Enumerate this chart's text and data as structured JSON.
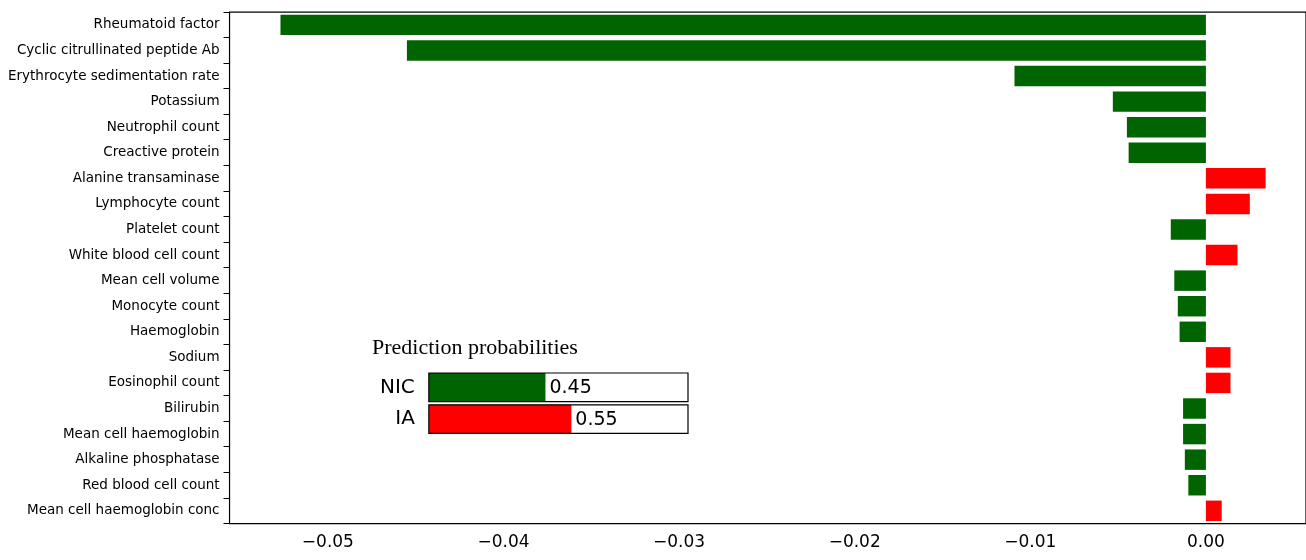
{
  "chart_data": [
    {
      "type": "bar",
      "orientation": "horizontal",
      "categories": [
        "Rheumatoid factor",
        "Cyclic citrullinated peptide Ab",
        "Erythrocyte sedimentation rate",
        "Potassium",
        "Neutrophil count",
        "Creactive protein",
        "Alanine transaminase",
        "Lymphocyte count",
        "Platelet count",
        "White blood cell count",
        "Mean cell volume",
        "Monocyte count",
        "Haemoglobin",
        "Sodium",
        "Eosinophil count",
        "Bilirubin",
        "Mean cell haemoglobin",
        "Alkaline phosphatase",
        "Red blood cell count",
        "Mean cell haemoglobin conc"
      ],
      "values": [
        -0.0527,
        -0.0455,
        -0.0109,
        -0.0053,
        -0.0045,
        -0.0044,
        0.0034,
        0.0025,
        -0.002,
        0.0018,
        -0.0018,
        -0.0016,
        -0.0015,
        0.0014,
        0.0014,
        -0.0013,
        -0.0013,
        -0.0012,
        -0.001,
        0.0009
      ],
      "colors": [
        "#006400",
        "#006400",
        "#006400",
        "#006400",
        "#006400",
        "#006400",
        "#ff0000",
        "#ff0000",
        "#006400",
        "#ff0000",
        "#006400",
        "#006400",
        "#006400",
        "#ff0000",
        "#ff0000",
        "#006400",
        "#006400",
        "#006400",
        "#006400",
        "#ff0000"
      ],
      "xlim": [
        -0.0556,
        0.0057
      ],
      "xticks": [
        {
          "value": -0.05,
          "label": "−0.05"
        },
        {
          "value": -0.04,
          "label": "−0.04"
        },
        {
          "value": -0.03,
          "label": "−0.03"
        },
        {
          "value": -0.02,
          "label": "−0.02"
        },
        {
          "value": -0.01,
          "label": "−0.01"
        },
        {
          "value": 0,
          "label": "0.00"
        }
      ],
      "grid": false,
      "legend": false
    },
    {
      "type": "bar",
      "orientation": "horizontal",
      "title": "Prediction probabilities",
      "categories": [
        "NIC",
        "IA"
      ],
      "values": [
        0.45,
        0.55
      ],
      "colors": [
        "#006400",
        "#ff0000"
      ],
      "xlim": [
        0,
        1
      ],
      "data_labels": true,
      "tick_labels": "y",
      "grid": false,
      "legend": false
    }
  ]
}
